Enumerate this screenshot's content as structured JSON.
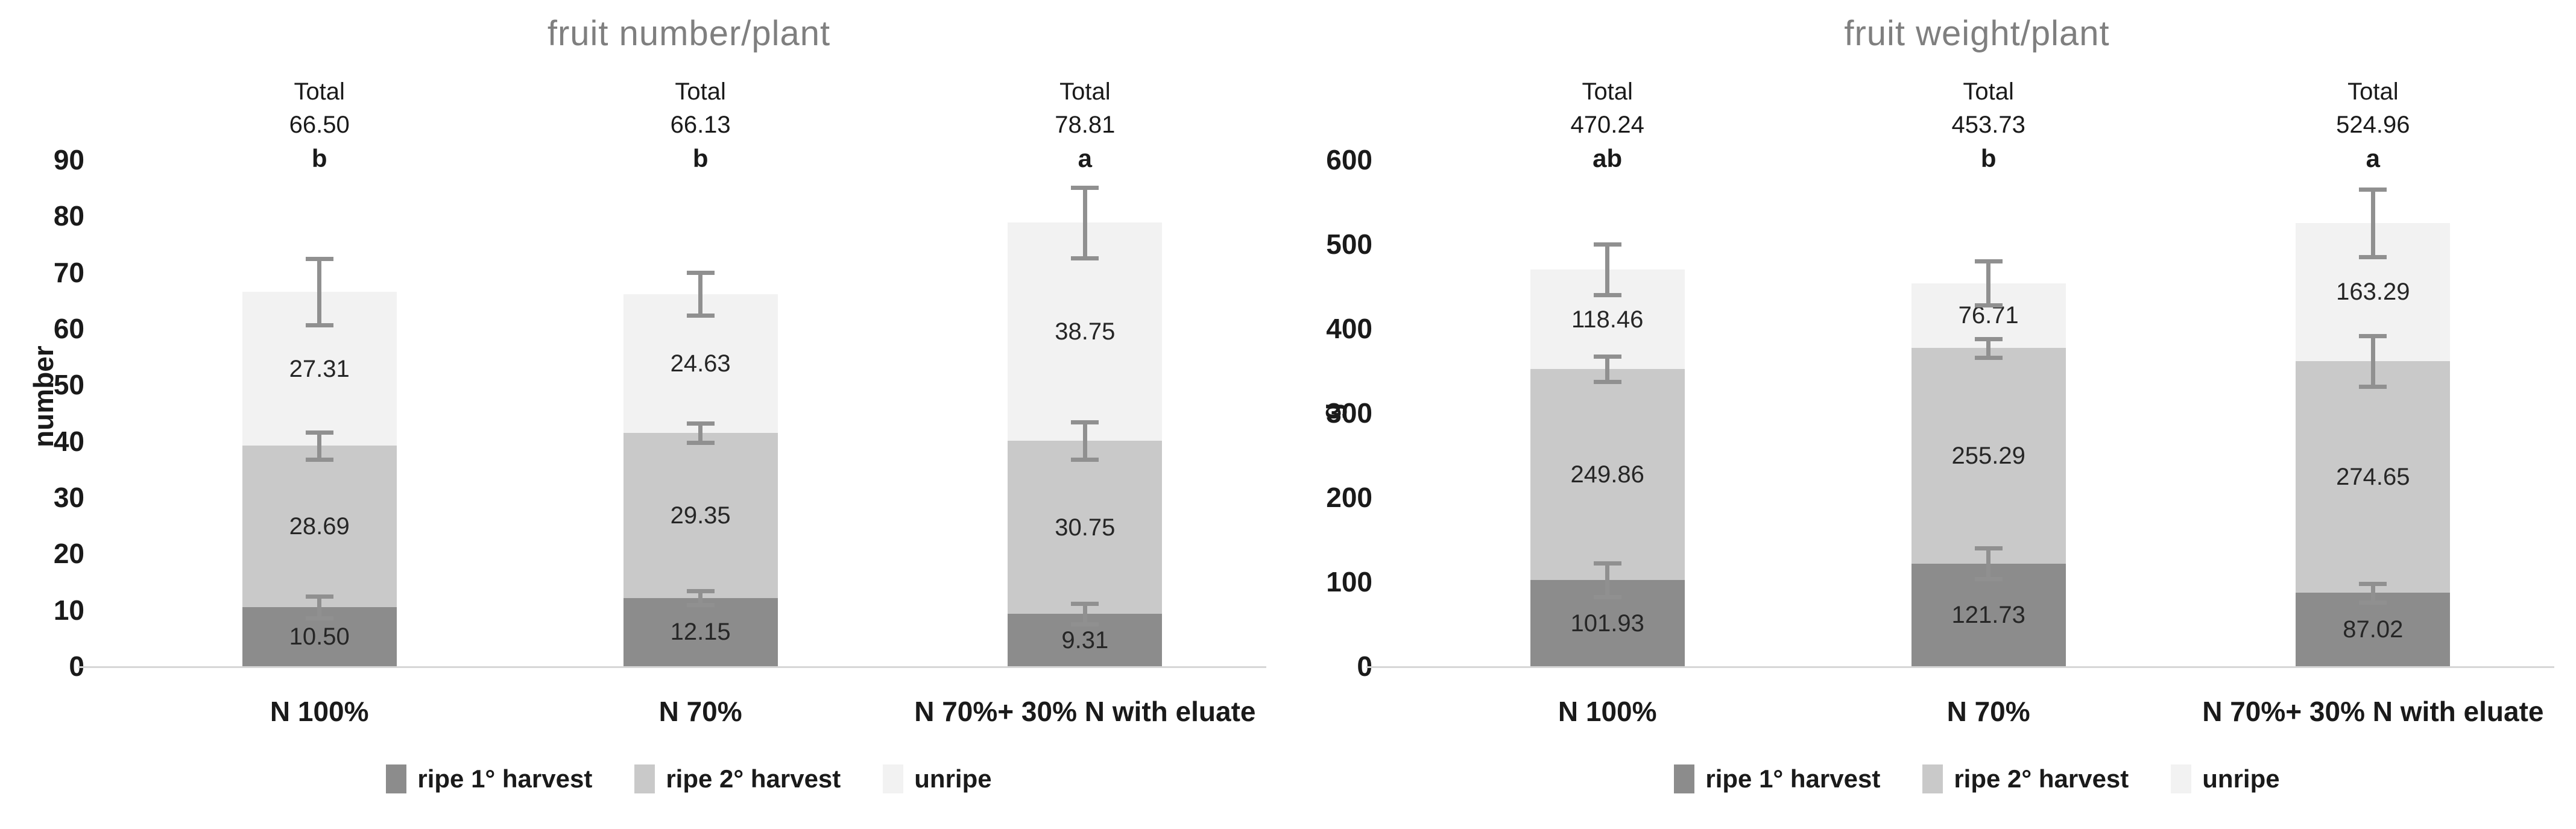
{
  "page": {
    "background": "#ffffff"
  },
  "colors": {
    "ripe1": "#8c8c8c",
    "ripe2": "#c9c9c9",
    "unripe": "#f2f2f2",
    "error_bar": "#909090",
    "title_gray": "#7f7f7f",
    "baseline": "#d6d6d6"
  },
  "legend": {
    "items": [
      {
        "label": "ripe 1° harvest",
        "color": "#8c8c8c"
      },
      {
        "label": "ripe 2° harvest",
        "color": "#c9c9c9"
      },
      {
        "label": "unripe",
        "color": "#f2f2f2"
      }
    ]
  },
  "chart_data": [
    {
      "type": "bar",
      "stacked": true,
      "title": "fruit number/plant",
      "xlabel": "",
      "ylabel": "number",
      "ylim": [
        0,
        90
      ],
      "ytick_step": 10,
      "grid": false,
      "legend_position": "bottom",
      "categories": [
        "N 100%",
        "N 70%",
        "N 70%+ 30% N with eluate"
      ],
      "series": [
        {
          "name": "ripe 1° harvest",
          "values": [
            10.5,
            12.15,
            9.31
          ],
          "labels": [
            "10.50",
            "12.15",
            "9.31"
          ],
          "errors": [
            1.9,
            1.2,
            1.8
          ]
        },
        {
          "name": "ripe 2° harvest",
          "values": [
            28.69,
            29.35,
            30.75
          ],
          "labels": [
            "28.69",
            "29.35",
            "30.75"
          ],
          "errors": [
            2.4,
            1.7,
            3.3
          ]
        },
        {
          "name": "unripe",
          "values": [
            27.31,
            24.63,
            38.75
          ],
          "labels": [
            "27.31",
            "24.63",
            "38.75"
          ],
          "errors": [
            5.9,
            3.8,
            6.3
          ]
        }
      ],
      "totals": {
        "label": "Total",
        "values": [
          "66.50",
          "66.13",
          "78.81"
        ],
        "letters": [
          "b",
          "b",
          "a"
        ]
      }
    },
    {
      "type": "bar",
      "stacked": true,
      "title": "fruit weight/plant",
      "xlabel": "",
      "ylabel": "g",
      "ylim": [
        0,
        600
      ],
      "ytick_step": 100,
      "grid": false,
      "legend_position": "bottom",
      "categories": [
        "N 100%",
        "N 70%",
        "N 70%+ 30% N with eluate"
      ],
      "series": [
        {
          "name": "ripe 1° harvest",
          "values": [
            101.93,
            121.73,
            87.02
          ],
          "labels": [
            "101.93",
            "121.73",
            "87.02"
          ],
          "errors": [
            20,
            18,
            11
          ]
        },
        {
          "name": "ripe 2° harvest",
          "values": [
            249.86,
            255.29,
            274.65
          ],
          "labels": [
            "249.86",
            "255.29",
            "274.65"
          ],
          "errors": [
            15,
            11,
            30
          ]
        },
        {
          "name": "unripe",
          "values": [
            118.46,
            76.71,
            163.29
          ],
          "labels": [
            "118.46",
            "76.71",
            "163.29"
          ],
          "errors": [
            30,
            26,
            40
          ]
        }
      ],
      "totals": {
        "label": "Total",
        "values": [
          "470.24",
          "453.73",
          "524.96"
        ],
        "letters": [
          "ab",
          "b",
          "a"
        ]
      }
    }
  ]
}
